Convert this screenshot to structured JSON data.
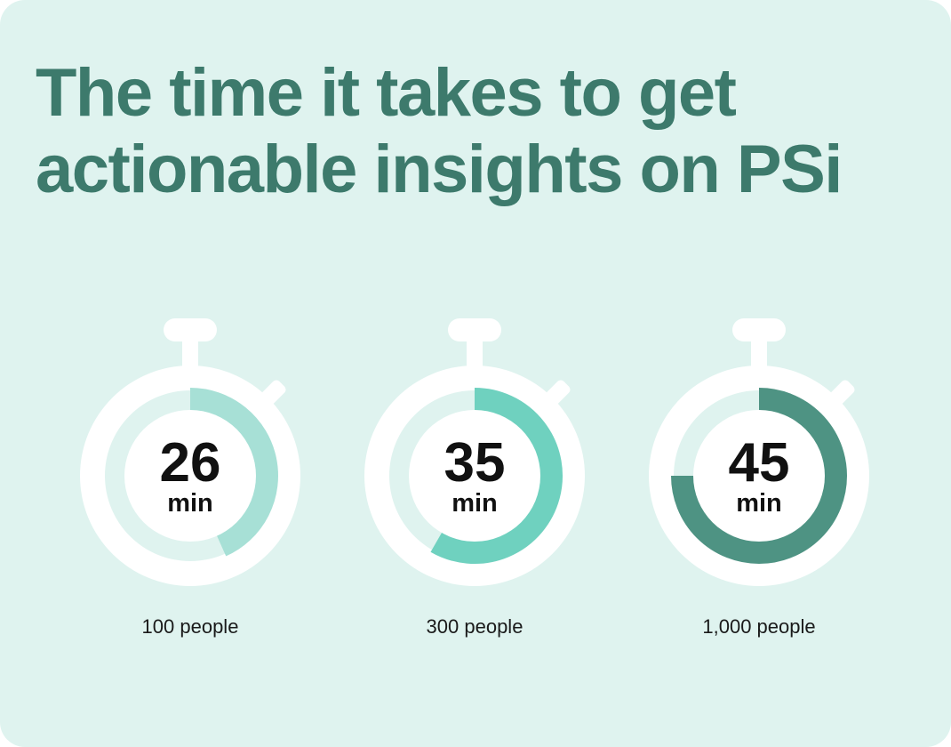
{
  "title": {
    "line1": "The time it takes to get",
    "line2": "actionable insights on PSi"
  },
  "chart_data": {
    "type": "bar",
    "title": "The time it takes to get actionable insights on PSi",
    "categories": [
      "100 people",
      "300 people",
      "1,000 people"
    ],
    "values": [
      26,
      35,
      45
    ],
    "unit": "min",
    "scale_max": 60,
    "series_colors": [
      "#a7e0d6",
      "#6fd1bf",
      "#4e9383"
    ],
    "xlabel": "",
    "ylabel": "",
    "grid": false,
    "legend": "none",
    "items": [
      {
        "value": "26",
        "unit": "min",
        "label": "100 people",
        "minutes": 26,
        "color": "#a7e0d6"
      },
      {
        "value": "35",
        "unit": "min",
        "label": "300 people",
        "minutes": 35,
        "color": "#6fd1bf"
      },
      {
        "value": "45",
        "unit": "min",
        "label": "1,000 people",
        "minutes": 45,
        "color": "#4e9383"
      }
    ]
  },
  "colors": {
    "background": "#dff3ef",
    "title": "#3d7a6c",
    "watch_body": "#ffffff",
    "track": "#dff3ef",
    "text": "#111111"
  }
}
